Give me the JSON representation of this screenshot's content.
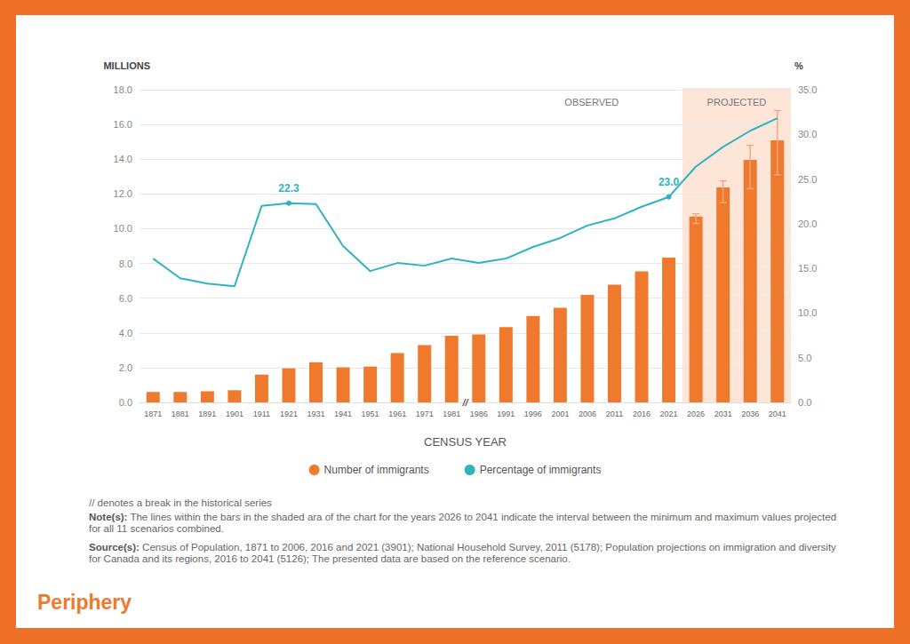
{
  "chart_data": {
    "type": "bar",
    "categories": [
      "1871",
      "1881",
      "1891",
      "1901",
      "1911",
      "1921",
      "1931",
      "1941",
      "1951",
      "1961",
      "1971",
      "1981",
      "1986",
      "1991",
      "1996",
      "2001",
      "2006",
      "2011",
      "2016",
      "2021",
      "2026",
      "2031",
      "2036",
      "2041"
    ],
    "x_label": "CENSUS YEAR",
    "y_label": "MILLIONS",
    "y2_label": "%",
    "ylim": [
      0,
      18
    ],
    "yticks": [
      {
        "value": 0,
        "label": "0.0"
      },
      {
        "value": 2,
        "label": "2.0"
      },
      {
        "value": 4,
        "label": "4.0"
      },
      {
        "value": 6,
        "label": "6.0"
      },
      {
        "value": 8,
        "label": "8.0"
      },
      {
        "value": 10,
        "label": "10.0"
      },
      {
        "value": 12,
        "label": "12.0"
      },
      {
        "value": 14,
        "label": "14.0"
      },
      {
        "value": 16,
        "label": "16.0"
      },
      {
        "value": 18,
        "label": "18.0"
      }
    ],
    "y2lim": [
      0,
      35
    ],
    "y2ticks": [
      {
        "value": 0,
        "label": "0.0"
      },
      {
        "value": 5,
        "label": "5.0"
      },
      {
        "value": 10,
        "label": "10.0"
      },
      {
        "value": 15,
        "label": "15.0"
      },
      {
        "value": 20,
        "label": "20.0"
      },
      {
        "value": 25,
        "label": "25.0"
      },
      {
        "value": 30,
        "label": "30.0"
      },
      {
        "value": 35,
        "label": "35.0"
      }
    ],
    "grid": true,
    "legend": "bottom",
    "series": [
      {
        "name": "Number of immigrants",
        "type": "bar",
        "color": "#ef7a2e",
        "values": [
          0.6,
          0.6,
          0.64,
          0.7,
          1.6,
          1.96,
          2.31,
          2.02,
          2.06,
          2.84,
          3.3,
          3.84,
          3.91,
          4.34,
          4.97,
          5.45,
          6.19,
          6.78,
          7.54,
          8.33,
          10.7,
          12.37,
          13.96,
          15.08
        ],
        "error_low": [
          null,
          null,
          null,
          null,
          null,
          null,
          null,
          null,
          null,
          null,
          null,
          null,
          null,
          null,
          null,
          null,
          null,
          null,
          null,
          null,
          10.3,
          11.5,
          12.3,
          13.1
        ],
        "error_high": [
          null,
          null,
          null,
          null,
          null,
          null,
          null,
          null,
          null,
          null,
          null,
          null,
          null,
          null,
          null,
          null,
          null,
          null,
          null,
          null,
          10.85,
          12.75,
          14.8,
          16.8
        ]
      },
      {
        "name": "Percentage of immigrants",
        "type": "line",
        "axis": "y2",
        "color": "#2fb3c1",
        "marker": "circle",
        "values": [
          16.1,
          13.9,
          13.3,
          13.0,
          22.0,
          22.3,
          22.2,
          17.5,
          14.7,
          15.6,
          15.3,
          16.1,
          15.6,
          16.1,
          17.4,
          18.4,
          19.8,
          20.6,
          21.9,
          23.0,
          26.4,
          28.6,
          30.4,
          31.8
        ],
        "value_labels": [
          null,
          null,
          null,
          null,
          null,
          "22.3",
          null,
          null,
          null,
          null,
          null,
          null,
          null,
          null,
          null,
          null,
          null,
          null,
          null,
          "23.0",
          null,
          null,
          null,
          null
        ]
      }
    ],
    "observed_label": "OBSERVED",
    "projected_region": {
      "label": "PROJECTED",
      "from": "2026",
      "to": "2041"
    },
    "break": {
      "after": "1981",
      "label": "//"
    }
  },
  "footnotes": {
    "break_note": "// denotes a break in the historical series",
    "note": {
      "heading": "Note(s):",
      "text": "The lines within the bars in the shaded ara of the chart for the years 2026 to 2041 indicate the interval between the minimum and maximum values projected for all 11 scenarios combined."
    },
    "source": {
      "heading": "Source(s):",
      "text": "Census of Population, 1871 to 2006, 2016 and 2021 (3901); National Household Survey, 2011 (5178); Population projections on immigration and diversity for Canada and its regions, 2016 to 2041 (5126); The presented data are based on the reference scenario."
    }
  },
  "logo": "Periphery"
}
